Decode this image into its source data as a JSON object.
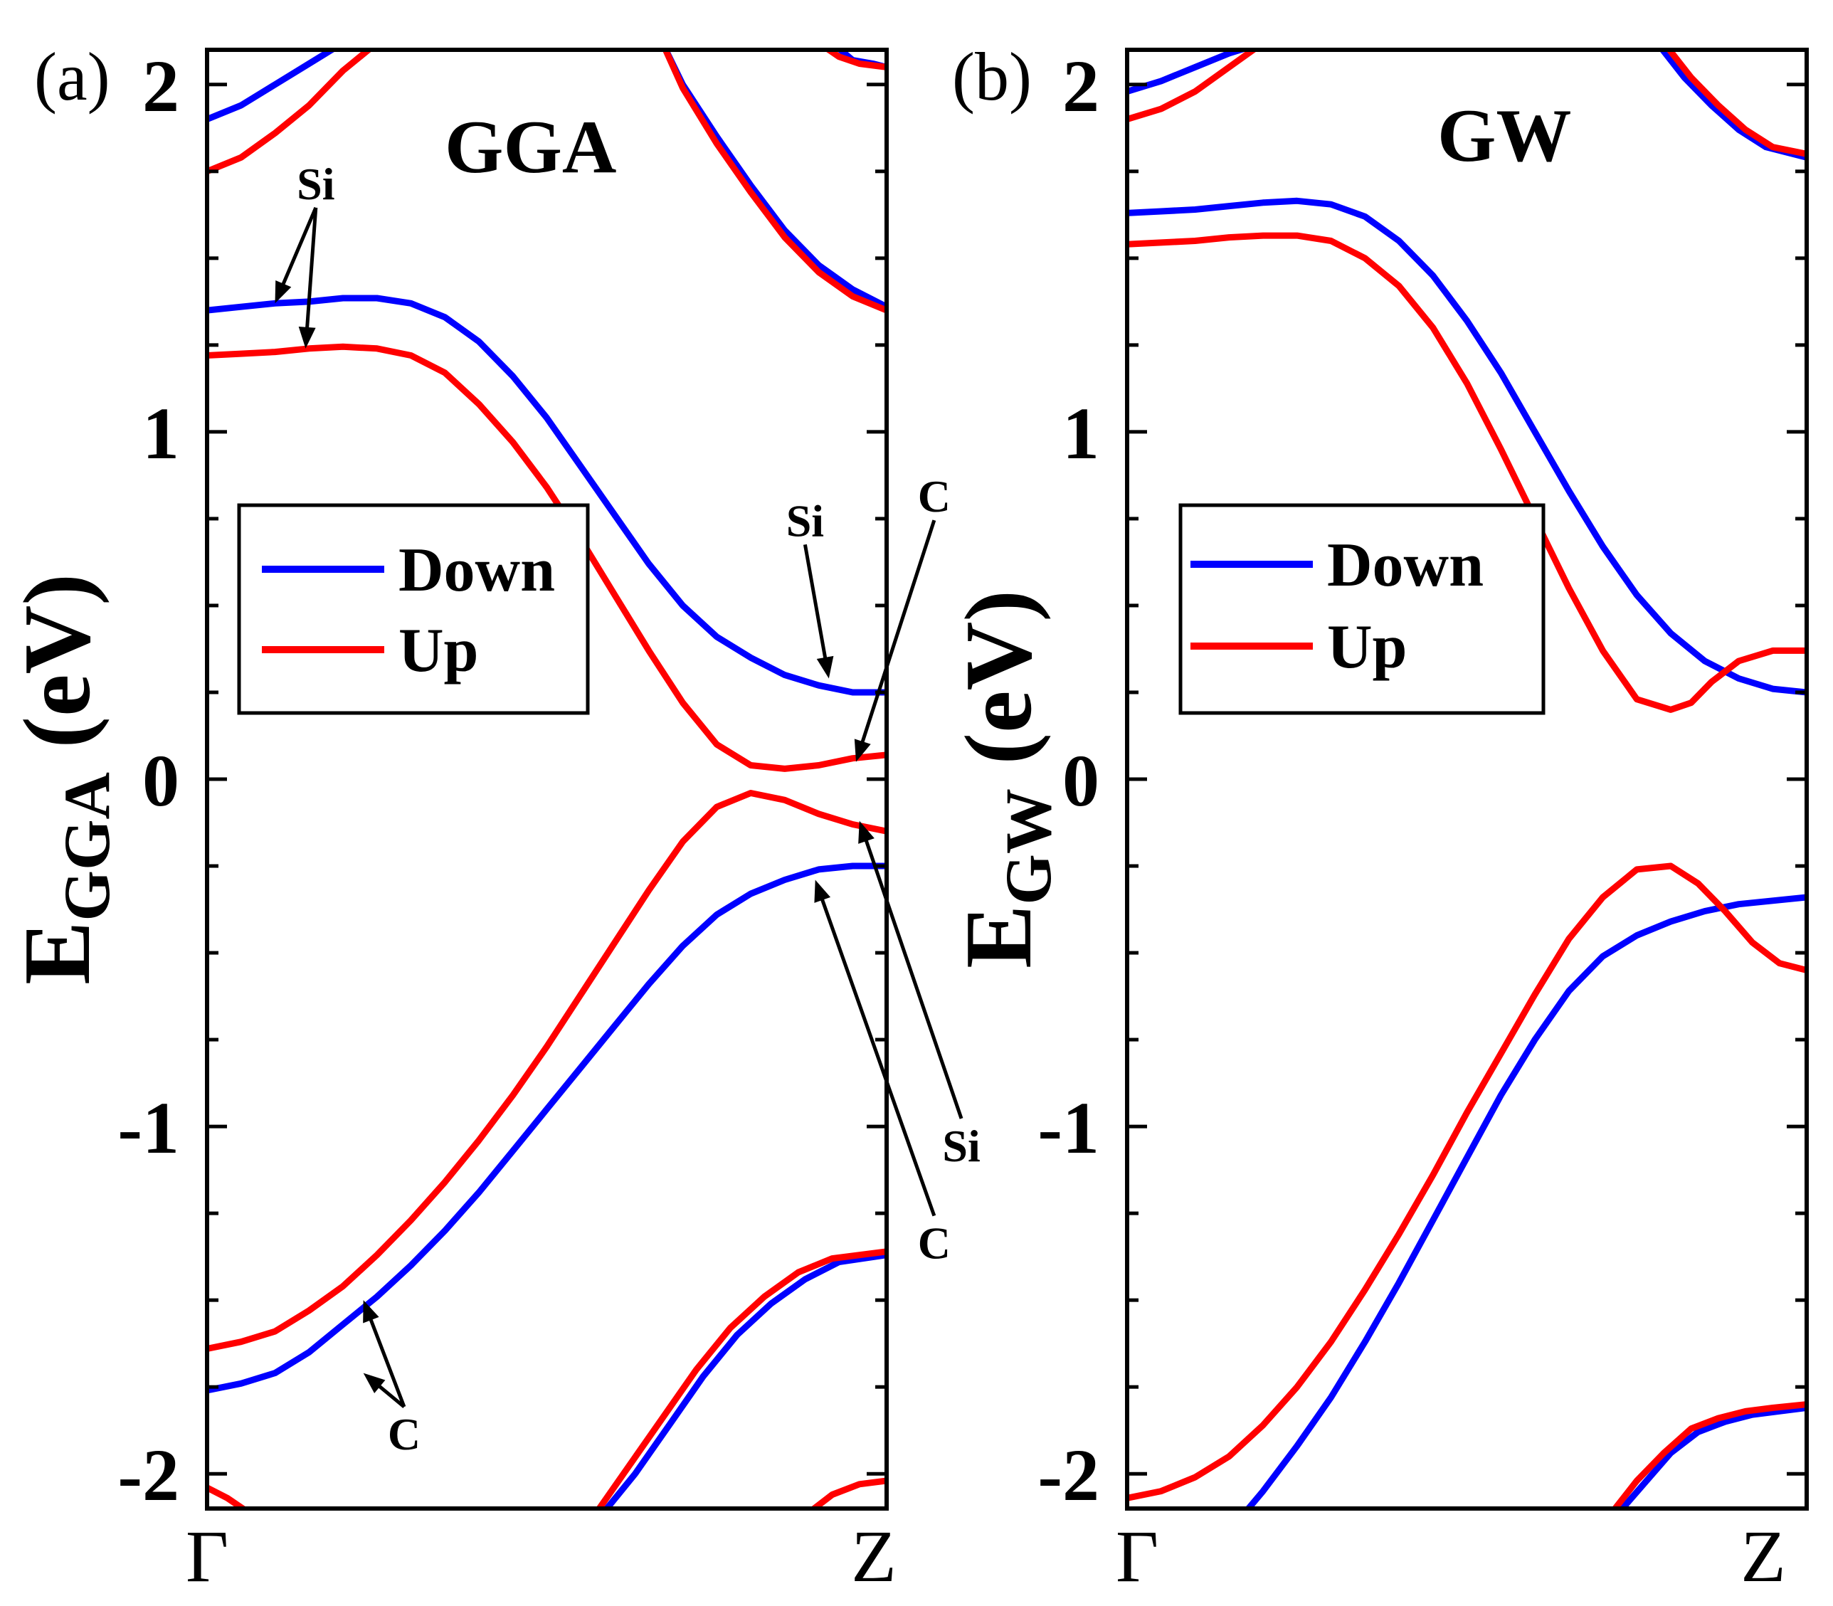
{
  "chart_data": [
    {
      "type": "line",
      "panel_label": "(a)",
      "method": "GGA",
      "ylabel_main": "E",
      "ylabel_sub": "GGA",
      "ylabel_unit": " (eV)",
      "x_ticks": [
        "Γ",
        "Z"
      ],
      "y_ticks": [
        "2",
        "1",
        "0",
        "-1",
        "-2"
      ],
      "ylim": [
        -2.1,
        2.1
      ],
      "xlim": [
        0,
        1
      ],
      "legend": {
        "position": "center-left",
        "entries": [
          {
            "name": "Down",
            "color": "#0000ff"
          },
          {
            "name": "Up",
            "color": "#ff0000"
          }
        ]
      },
      "series": [
        {
          "name": "Down",
          "color": "#0000ff",
          "x": [
            0,
            0.05,
            0.1,
            0.15,
            0.2
          ],
          "y": [
            1.9,
            1.94,
            2.0,
            2.06,
            2.12
          ]
        },
        {
          "name": "Down",
          "color": "#0000ff",
          "x": [
            0,
            0.05,
            0.1,
            0.15,
            0.2,
            0.25,
            0.3,
            0.35,
            0.4,
            0.45,
            0.5,
            0.55,
            0.6,
            0.65,
            0.7,
            0.75,
            0.8,
            0.85,
            0.9,
            0.95,
            1.0
          ],
          "y": [
            1.35,
            1.36,
            1.37,
            1.375,
            1.385,
            1.385,
            1.37,
            1.33,
            1.26,
            1.16,
            1.04,
            0.9,
            0.76,
            0.62,
            0.5,
            0.41,
            0.35,
            0.3,
            0.27,
            0.25,
            0.25
          ]
        },
        {
          "name": "Down",
          "color": "#0000ff",
          "x": [
            0,
            0.05,
            0.1,
            0.15,
            0.2,
            0.25,
            0.3,
            0.35,
            0.4,
            0.45,
            0.5,
            0.55,
            0.6,
            0.65,
            0.7,
            0.75,
            0.8,
            0.85,
            0.9,
            0.95,
            1.0
          ],
          "y": [
            -1.76,
            -1.74,
            -1.71,
            -1.65,
            -1.57,
            -1.49,
            -1.4,
            -1.3,
            -1.19,
            -1.07,
            -0.95,
            -0.83,
            -0.71,
            -0.59,
            -0.48,
            -0.39,
            -0.33,
            -0.29,
            -0.26,
            -0.25,
            -0.25
          ]
        },
        {
          "name": "Down",
          "color": "#0000ff",
          "x": [
            0.67,
            0.7,
            0.75,
            0.8,
            0.85,
            0.9,
            0.95,
            1.0
          ],
          "y": [
            2.12,
            2.0,
            1.85,
            1.71,
            1.58,
            1.48,
            1.41,
            1.36
          ]
        },
        {
          "name": "Down",
          "color": "#0000ff",
          "x": [
            0.92,
            0.95,
            0.98,
            1.0
          ],
          "y": [
            2.12,
            2.07,
            2.06,
            2.05
          ]
        },
        {
          "name": "Down",
          "color": "#0000ff",
          "x": [
            0.58,
            0.63,
            0.68,
            0.73,
            0.78,
            0.83,
            0.88,
            0.93,
            1.0
          ],
          "y": [
            -2.12,
            -2.0,
            -1.86,
            -1.72,
            -1.6,
            -1.51,
            -1.44,
            -1.39,
            -1.37
          ]
        },
        {
          "name": "Up",
          "color": "#ff0000",
          "x": [
            0,
            0.05,
            0.1,
            0.15,
            0.2,
            0.25
          ],
          "y": [
            1.75,
            1.79,
            1.86,
            1.94,
            2.04,
            2.12
          ]
        },
        {
          "name": "Up",
          "color": "#ff0000",
          "x": [
            0,
            0.05,
            0.1,
            0.15,
            0.2,
            0.25,
            0.3,
            0.35,
            0.4,
            0.45,
            0.5,
            0.55,
            0.6,
            0.65,
            0.7,
            0.75,
            0.8,
            0.85,
            0.9,
            0.95,
            1.0
          ],
          "y": [
            1.22,
            1.225,
            1.23,
            1.24,
            1.245,
            1.24,
            1.22,
            1.17,
            1.08,
            0.97,
            0.84,
            0.69,
            0.53,
            0.37,
            0.22,
            0.1,
            0.04,
            0.03,
            0.04,
            0.06,
            0.07
          ]
        },
        {
          "name": "Up",
          "color": "#ff0000",
          "x": [
            0,
            0.05,
            0.1,
            0.15,
            0.2,
            0.25,
            0.3,
            0.35,
            0.4,
            0.45,
            0.5,
            0.55,
            0.6,
            0.65,
            0.7,
            0.75,
            0.8,
            0.85,
            0.9,
            0.95,
            1.0
          ],
          "y": [
            -1.64,
            -1.62,
            -1.59,
            -1.53,
            -1.46,
            -1.37,
            -1.27,
            -1.16,
            -1.04,
            -0.91,
            -0.77,
            -0.62,
            -0.47,
            -0.32,
            -0.18,
            -0.08,
            -0.04,
            -0.06,
            -0.1,
            -0.13,
            -0.15
          ]
        },
        {
          "name": "Up",
          "color": "#ff0000",
          "x": [
            0.67,
            0.7,
            0.75,
            0.8,
            0.85,
            0.9,
            0.95,
            1.0
          ],
          "y": [
            2.12,
            1.99,
            1.83,
            1.69,
            1.56,
            1.46,
            1.39,
            1.35
          ]
        },
        {
          "name": "Up",
          "color": "#ff0000",
          "x": [
            0.9,
            0.93,
            0.96,
            1.0
          ],
          "y": [
            2.12,
            2.08,
            2.06,
            2.05
          ]
        },
        {
          "name": "Up",
          "color": "#ff0000",
          "x": [
            0.57,
            0.62,
            0.67,
            0.72,
            0.77,
            0.82,
            0.87,
            0.92,
            1.0
          ],
          "y": [
            -2.12,
            -1.98,
            -1.84,
            -1.7,
            -1.58,
            -1.49,
            -1.42,
            -1.38,
            -1.36
          ]
        },
        {
          "name": "Up",
          "color": "#ff0000",
          "x": [
            0,
            0.03,
            0.06
          ],
          "y": [
            -2.04,
            -2.07,
            -2.11
          ]
        },
        {
          "name": "Up",
          "color": "#ff0000",
          "x": [
            0.88,
            0.92,
            0.96,
            1.0
          ],
          "y": [
            -2.12,
            -2.06,
            -2.03,
            -2.02
          ]
        }
      ],
      "annotations": [
        {
          "text": "Si",
          "text_at": [
            0.16,
            1.67
          ],
          "targets": [
            [
              0.1,
              1.37
            ],
            [
              0.145,
              1.24
            ]
          ]
        },
        {
          "text": "Si",
          "text_at": [
            0.88,
            0.7
          ],
          "targets": [
            [
              0.915,
              0.29
            ]
          ]
        },
        {
          "text": "C",
          "text_at": [
            1.07,
            0.77
          ],
          "targets": [
            [
              0.955,
              0.05
            ]
          ]
        },
        {
          "text": "Si",
          "text_at": [
            1.11,
            -1.1
          ],
          "targets": [
            [
              0.96,
              -0.12
            ]
          ]
        },
        {
          "text": "C",
          "text_at": [
            1.07,
            -1.38
          ],
          "targets": [
            [
              0.895,
              -0.29
            ]
          ]
        },
        {
          "text": "C",
          "text_at": [
            0.29,
            -1.93
          ],
          "targets": [
            [
              0.23,
              -1.71
            ],
            [
              0.23,
              -1.5
            ]
          ]
        }
      ]
    },
    {
      "type": "line",
      "panel_label": "(b)",
      "method": "GW",
      "ylabel_main": "E",
      "ylabel_sub": "GW",
      "ylabel_unit": " (eV)",
      "x_ticks": [
        "Γ",
        "Z"
      ],
      "y_ticks": [
        "2",
        "1",
        "0",
        "-1",
        "-2"
      ],
      "ylim": [
        -2.1,
        2.1
      ],
      "xlim": [
        0,
        1
      ],
      "legend": {
        "position": "center-left",
        "entries": [
          {
            "name": "Down",
            "color": "#0000ff"
          },
          {
            "name": "Up",
            "color": "#ff0000"
          }
        ]
      },
      "series": [
        {
          "name": "Down",
          "color": "#0000ff",
          "x": [
            0,
            0.05,
            0.1,
            0.15,
            0.2
          ],
          "y": [
            1.98,
            2.01,
            2.05,
            2.09,
            2.12
          ]
        },
        {
          "name": "Down",
          "color": "#0000ff",
          "x": [
            0,
            0.05,
            0.1,
            0.15,
            0.2,
            0.25,
            0.3,
            0.35,
            0.4,
            0.45,
            0.5,
            0.55,
            0.6,
            0.65,
            0.7,
            0.75,
            0.8,
            0.85,
            0.9,
            0.95,
            1.0
          ],
          "y": [
            1.63,
            1.635,
            1.64,
            1.65,
            1.66,
            1.665,
            1.655,
            1.62,
            1.55,
            1.45,
            1.32,
            1.17,
            1.0,
            0.83,
            0.67,
            0.53,
            0.42,
            0.34,
            0.29,
            0.26,
            0.25
          ]
        },
        {
          "name": "Down",
          "color": "#0000ff",
          "x": [
            0.17,
            0.2,
            0.25,
            0.3,
            0.35,
            0.4,
            0.45,
            0.5,
            0.55,
            0.6,
            0.65,
            0.7,
            0.75,
            0.8,
            0.85,
            0.9,
            0.95,
            1.0
          ],
          "y": [
            -2.12,
            -2.05,
            -1.92,
            -1.78,
            -1.62,
            -1.45,
            -1.27,
            -1.09,
            -0.91,
            -0.75,
            -0.61,
            -0.51,
            -0.45,
            -0.41,
            -0.38,
            -0.36,
            -0.35,
            -0.34
          ]
        },
        {
          "name": "Down",
          "color": "#0000ff",
          "x": [
            0.78,
            0.82,
            0.86,
            0.9,
            0.94,
            1.0
          ],
          "y": [
            2.12,
            2.02,
            1.94,
            1.87,
            1.82,
            1.79
          ]
        },
        {
          "name": "Down",
          "color": "#0000ff",
          "x": [
            0.72,
            0.76,
            0.8,
            0.84,
            0.88,
            0.92,
            0.96,
            1.0
          ],
          "y": [
            -2.12,
            -2.03,
            -1.94,
            -1.88,
            -1.85,
            -1.83,
            -1.82,
            -1.81
          ]
        },
        {
          "name": "Up",
          "color": "#ff0000",
          "x": [
            0,
            0.05,
            0.1,
            0.15,
            0.2
          ],
          "y": [
            1.9,
            1.93,
            1.98,
            2.05,
            2.12
          ]
        },
        {
          "name": "Up",
          "color": "#ff0000",
          "x": [
            0,
            0.05,
            0.1,
            0.15,
            0.2,
            0.25,
            0.3,
            0.35,
            0.4,
            0.45,
            0.5,
            0.55,
            0.6,
            0.65,
            0.7,
            0.75,
            0.8,
            0.83,
            0.86,
            0.9,
            0.95,
            1.0
          ],
          "y": [
            1.54,
            1.545,
            1.55,
            1.56,
            1.565,
            1.565,
            1.55,
            1.5,
            1.42,
            1.3,
            1.14,
            0.95,
            0.75,
            0.55,
            0.37,
            0.23,
            0.2,
            0.22,
            0.28,
            0.34,
            0.37,
            0.37
          ]
        },
        {
          "name": "Up",
          "color": "#ff0000",
          "x": [
            0,
            0.05,
            0.1,
            0.15,
            0.2,
            0.25,
            0.3,
            0.35,
            0.4,
            0.45,
            0.5,
            0.55,
            0.6,
            0.65,
            0.7,
            0.75,
            0.8,
            0.84,
            0.88,
            0.92,
            0.96,
            1.0
          ],
          "y": [
            -2.07,
            -2.05,
            -2.01,
            -1.95,
            -1.86,
            -1.75,
            -1.62,
            -1.47,
            -1.31,
            -1.14,
            -0.96,
            -0.79,
            -0.62,
            -0.46,
            -0.34,
            -0.26,
            -0.25,
            -0.3,
            -0.38,
            -0.47,
            -0.53,
            -0.55
          ]
        },
        {
          "name": "Up",
          "color": "#ff0000",
          "x": [
            0.79,
            0.83,
            0.87,
            0.91,
            0.95,
            1.0
          ],
          "y": [
            2.12,
            2.02,
            1.94,
            1.87,
            1.82,
            1.8
          ]
        },
        {
          "name": "Up",
          "color": "#ff0000",
          "x": [
            0.71,
            0.75,
            0.79,
            0.83,
            0.87,
            0.91,
            0.95,
            1.0
          ],
          "y": [
            -2.12,
            -2.02,
            -1.94,
            -1.87,
            -1.84,
            -1.82,
            -1.81,
            -1.8
          ]
        }
      ],
      "annotations": []
    }
  ]
}
